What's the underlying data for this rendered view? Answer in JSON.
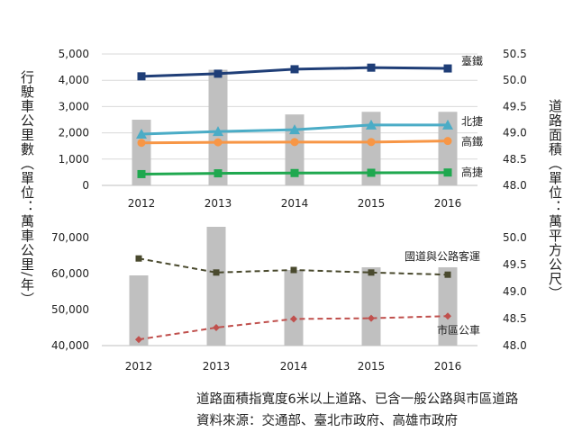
{
  "chart_data": [
    {
      "type": "bar+line",
      "panel": "top",
      "categories": [
        "2012",
        "2013",
        "2014",
        "2015",
        "2016"
      ],
      "left_axis": {
        "label": "行駛車公里數（單位：萬車公里/年）",
        "range": [
          0,
          5000
        ],
        "ticks": [
          "0",
          "1,000",
          "2,000",
          "3,000",
          "4,000",
          "5,000"
        ]
      },
      "right_axis": {
        "label": "道路面積（單位：萬平方公尺）",
        "range": [
          48.0,
          50.5
        ],
        "ticks": [
          "48.0",
          "48.5",
          "49.0",
          "49.5",
          "50.0",
          "50.5"
        ]
      },
      "bars": {
        "name": "道路面積",
        "axis": "right",
        "color": "#c0c0c0",
        "values": [
          49.25,
          50.2,
          49.35,
          49.4,
          49.4
        ]
      },
      "series": [
        {
          "name": "臺鐵",
          "axis": "left",
          "marker": "square",
          "color": "#1f3e77",
          "values": [
            4150,
            4250,
            4420,
            4480,
            4450
          ]
        },
        {
          "name": "北捷",
          "axis": "left",
          "marker": "triangle",
          "color": "#4bacc6",
          "values": [
            1950,
            2050,
            2120,
            2300,
            2300
          ]
        },
        {
          "name": "高鐵",
          "axis": "left",
          "marker": "circle",
          "color": "#f79646",
          "values": [
            1620,
            1640,
            1650,
            1650,
            1690
          ]
        },
        {
          "name": "高捷",
          "axis": "left",
          "marker": "square",
          "color": "#1fa84f",
          "values": [
            430,
            460,
            470,
            480,
            490
          ]
        }
      ]
    },
    {
      "type": "bar+line",
      "panel": "bottom",
      "categories": [
        "2012",
        "2013",
        "2014",
        "2015",
        "2016"
      ],
      "left_axis": {
        "range": [
          40000,
          70000
        ],
        "ticks": [
          "40,000",
          "50,000",
          "60,000",
          "70,000"
        ]
      },
      "right_axis": {
        "range": [
          48.0,
          50.0
        ],
        "ticks": [
          "48.0",
          "48.5",
          "49.0",
          "49.5",
          "50.0"
        ]
      },
      "bars": {
        "name": "道路面積",
        "axis": "right",
        "color": "#c0c0c0",
        "values": [
          49.3,
          50.2,
          49.4,
          49.45,
          49.45
        ]
      },
      "series": [
        {
          "name": "國道與公路客運",
          "axis": "left",
          "marker": "square",
          "dashed": true,
          "color": "#4a4a2e",
          "values": [
            64200,
            60300,
            61000,
            60300,
            59700
          ]
        },
        {
          "name": "市區公車",
          "axis": "left",
          "marker": "diamond",
          "dashed": true,
          "color": "#c0504d",
          "values": [
            41700,
            45000,
            47400,
            47600,
            48200
          ]
        }
      ]
    }
  ],
  "axis_titles": {
    "left": "行駛車公里數（單位：萬車公里/年）",
    "right": "道路面積（單位：萬平方公尺）"
  },
  "notes": {
    "line1": "道路面積指寬度6米以上道路、已含一般公路與市區道路",
    "line2": "資料來源：交通部、臺北市政府、高雄市政府"
  }
}
